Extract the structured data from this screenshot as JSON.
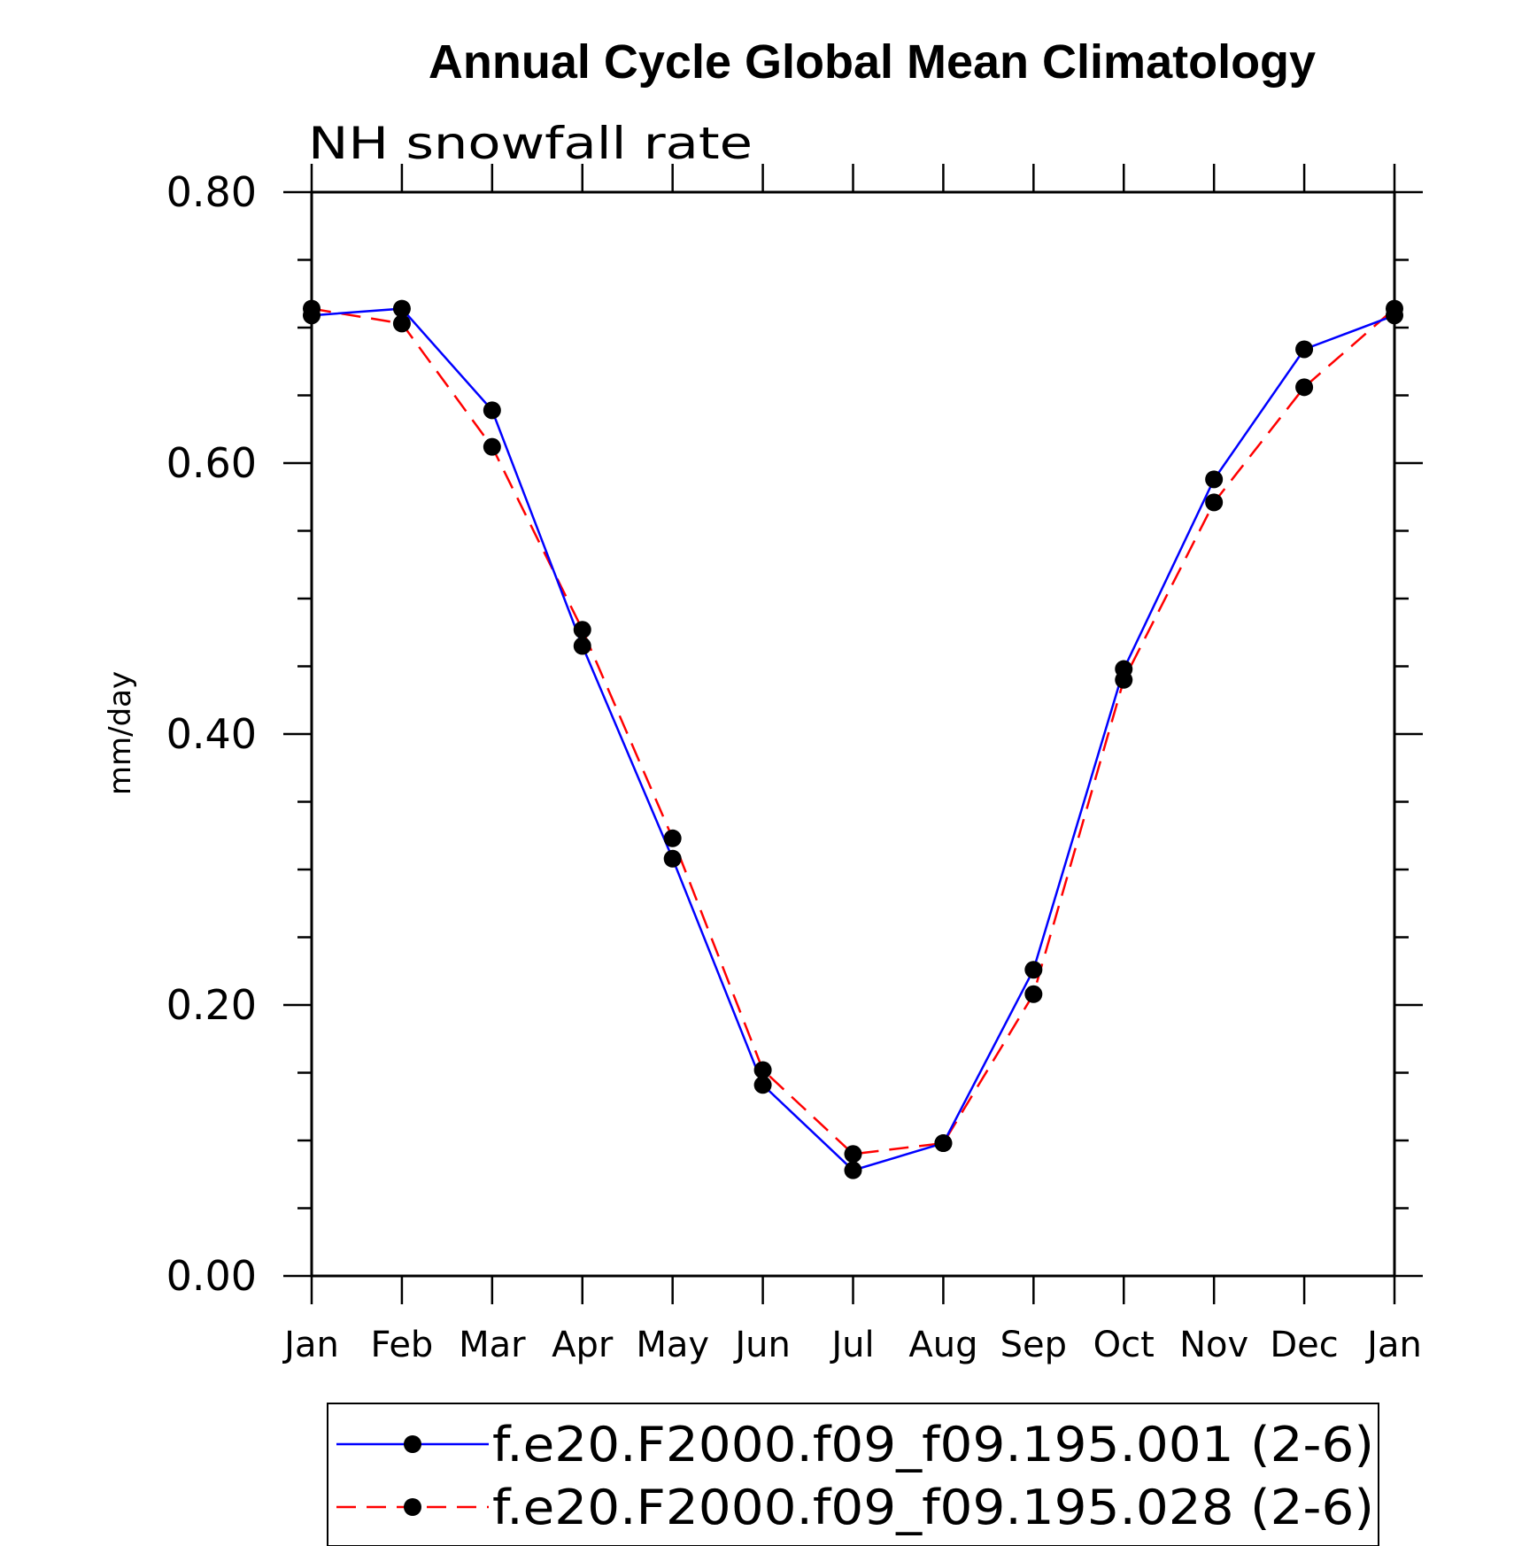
{
  "chart_data": {
    "type": "line",
    "title": "Annual Cycle Global Mean Climatology",
    "subtitle": "NH snowfall rate",
    "xlabel": "",
    "ylabel": "mm/day",
    "categories": [
      "Jan",
      "Feb",
      "Mar",
      "Apr",
      "May",
      "Jun",
      "Jul",
      "Aug",
      "Sep",
      "Oct",
      "Nov",
      "Dec",
      "Jan"
    ],
    "ylim": [
      0,
      0.8
    ],
    "y_ticks": [
      "0.00",
      "0.20",
      "0.40",
      "0.60",
      "0.80"
    ],
    "grid": false,
    "legend_position": "bottom",
    "series": [
      {
        "name": "f.e20.F2000.f09_f09.195.001 (2-6)",
        "color": "#0000ff",
        "line_style": "solid",
        "marker": "filled-circle",
        "values": [
          0.709,
          0.714,
          0.639,
          0.465,
          0.308,
          0.141,
          0.078,
          0.098,
          0.226,
          0.448,
          0.588,
          0.684,
          0.709
        ]
      },
      {
        "name": "f.e20.F2000.f09_f09.195.028 (2-6)",
        "color": "#ff0000",
        "line_style": "dashed",
        "marker": "filled-circle",
        "values": [
          0.714,
          0.703,
          0.612,
          0.477,
          0.323,
          0.152,
          0.09,
          0.098,
          0.208,
          0.44,
          0.571,
          0.656,
          0.714
        ]
      }
    ]
  }
}
